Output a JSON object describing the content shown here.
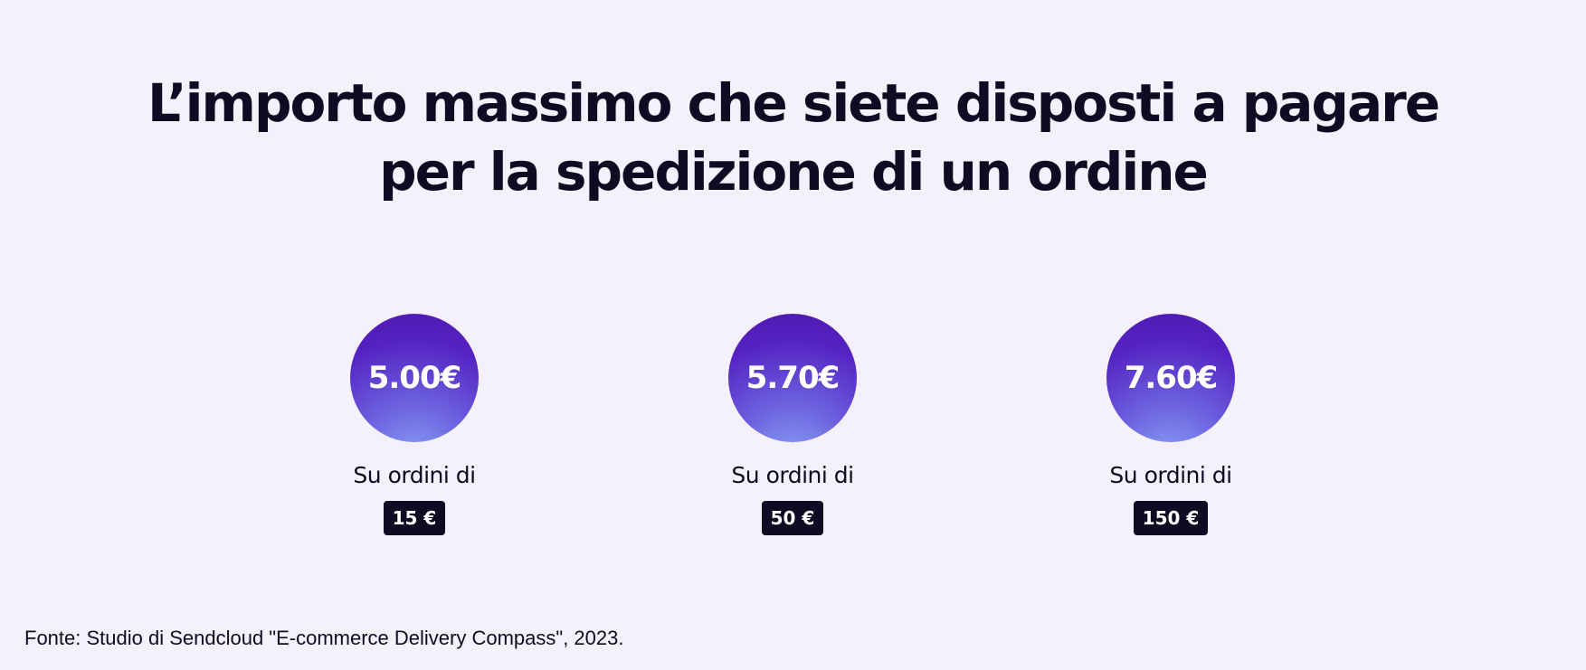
{
  "title": {
    "line1": "L’importo massimo che siete disposti a pagare",
    "line2": "per la spedizione di un ordine"
  },
  "stats": [
    {
      "amount": "5.00€",
      "label": "Su ordini di",
      "order_value": "15 €"
    },
    {
      "amount": "5.70€",
      "label": "Su ordini di",
      "order_value": "50 €"
    },
    {
      "amount": "7.60€",
      "label": "Su ordini di",
      "order_value": "150 €"
    }
  ],
  "source": "Fonte: Studio di Sendcloud \"E-commerce Delivery Compass\", 2023.",
  "colors": {
    "background": "#f4f1fc",
    "text": "#0d0c22",
    "circle_dark": "#4e17ad",
    "circle_light": "#8aa2f4",
    "badge": "#0d0c22"
  }
}
